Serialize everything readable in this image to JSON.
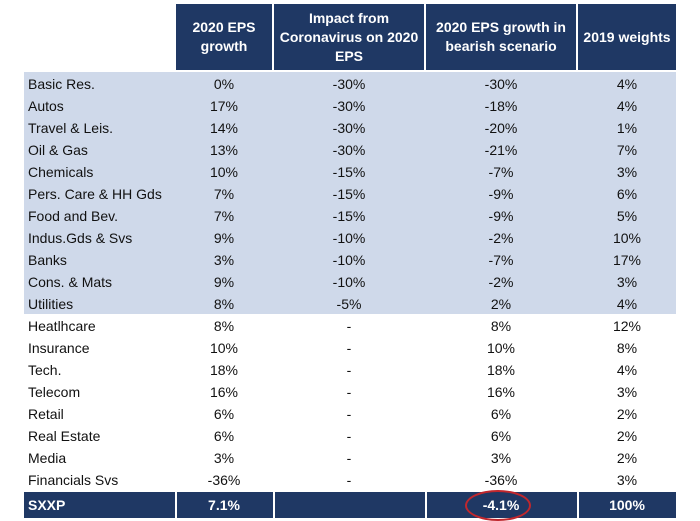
{
  "headers": {
    "eps_growth": "2020 EPS growth",
    "impact": "Impact from Coronavirus on 2020 EPS",
    "bearish": "2020 EPS growth in bearish scenario",
    "weights": "2019 weights"
  },
  "rows": [
    {
      "sector": "Basic Res.",
      "eps": "0%",
      "impact": "-30%",
      "bearish": "-30%",
      "weight": "4%",
      "highlighted": true
    },
    {
      "sector": "Autos",
      "eps": "17%",
      "impact": "-30%",
      "bearish": "-18%",
      "weight": "4%",
      "highlighted": true
    },
    {
      "sector": "Travel & Leis.",
      "eps": "14%",
      "impact": "-30%",
      "bearish": "-20%",
      "weight": "1%",
      "highlighted": true
    },
    {
      "sector": "Oil & Gas",
      "eps": "13%",
      "impact": "-30%",
      "bearish": "-21%",
      "weight": "7%",
      "highlighted": true
    },
    {
      "sector": "Chemicals",
      "eps": "10%",
      "impact": "-15%",
      "bearish": "-7%",
      "weight": "3%",
      "highlighted": true
    },
    {
      "sector": "Pers. Care & HH Gds",
      "eps": "7%",
      "impact": "-15%",
      "bearish": "-9%",
      "weight": "6%",
      "highlighted": true
    },
    {
      "sector": "Food and Bev.",
      "eps": "7%",
      "impact": "-15%",
      "bearish": "-9%",
      "weight": "5%",
      "highlighted": true
    },
    {
      "sector": "Indus.Gds & Svs",
      "eps": "9%",
      "impact": "-10%",
      "bearish": "-2%",
      "weight": "10%",
      "highlighted": true
    },
    {
      "sector": "Banks",
      "eps": "3%",
      "impact": "-10%",
      "bearish": "-7%",
      "weight": "17%",
      "highlighted": true
    },
    {
      "sector": "Cons. & Mats",
      "eps": "9%",
      "impact": "-10%",
      "bearish": "-2%",
      "weight": "3%",
      "highlighted": true
    },
    {
      "sector": "Utilities",
      "eps": "8%",
      "impact": "-5%",
      "bearish": "2%",
      "weight": "4%",
      "highlighted": true
    },
    {
      "sector": "Heatlhcare",
      "eps": "8%",
      "impact": "-",
      "bearish": "8%",
      "weight": "12%",
      "highlighted": false
    },
    {
      "sector": "Insurance",
      "eps": "10%",
      "impact": "-",
      "bearish": "10%",
      "weight": "8%",
      "highlighted": false
    },
    {
      "sector": "Tech.",
      "eps": "18%",
      "impact": "-",
      "bearish": "18%",
      "weight": "4%",
      "highlighted": false
    },
    {
      "sector": "Telecom",
      "eps": "16%",
      "impact": "-",
      "bearish": "16%",
      "weight": "3%",
      "highlighted": false
    },
    {
      "sector": "Retail",
      "eps": "6%",
      "impact": "-",
      "bearish": "6%",
      "weight": "2%",
      "highlighted": false
    },
    {
      "sector": "Real Estate",
      "eps": "6%",
      "impact": "-",
      "bearish": "6%",
      "weight": "2%",
      "highlighted": false
    },
    {
      "sector": "Media",
      "eps": "3%",
      "impact": "-",
      "bearish": "3%",
      "weight": "2%",
      "highlighted": false
    },
    {
      "sector": "Financials Svs",
      "eps": "-36%",
      "impact": "-",
      "bearish": "-36%",
      "weight": "3%",
      "highlighted": false
    }
  ],
  "total": {
    "sector": "SXXP",
    "eps": "7.1%",
    "impact": "",
    "bearish": "-4.1%",
    "weight": "100%"
  },
  "colors": {
    "header": "#1f3864",
    "highlight": "#cfd9ea",
    "circle": "#c0272d"
  }
}
